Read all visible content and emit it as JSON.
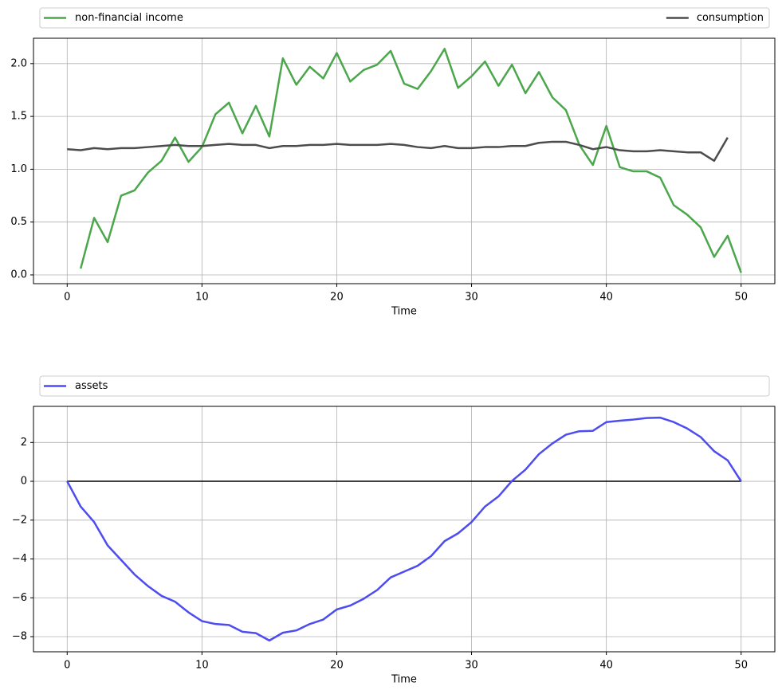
{
  "chart_data": [
    {
      "type": "line",
      "xlabel": "Time",
      "grid": true,
      "legend": "above",
      "xlim": [
        -2.5,
        52.5
      ],
      "ylim": [
        -0.083,
        2.24
      ],
      "xticks": [
        0,
        10,
        20,
        30,
        40,
        50
      ],
      "yticks": [
        {
          "value": 0,
          "label": "0.0"
        },
        0.5,
        {
          "value": 1,
          "label": "1.0"
        },
        1.5,
        {
          "value": 2,
          "label": "2.0"
        }
      ],
      "x": [
        0,
        1,
        2,
        3,
        4,
        5,
        6,
        7,
        8,
        9,
        10,
        11,
        12,
        13,
        14,
        15,
        16,
        17,
        18,
        19,
        20,
        21,
        22,
        23,
        24,
        25,
        26,
        27,
        28,
        29,
        30,
        31,
        32,
        33,
        34,
        35,
        36,
        37,
        38,
        39,
        40,
        41,
        42,
        43,
        44,
        45,
        46,
        47,
        48,
        49,
        50
      ],
      "series": [
        {
          "name": "non-financial income",
          "color": "#4ca64c",
          "values": [
            null,
            0.06,
            0.54,
            0.31,
            0.75,
            0.8,
            0.97,
            1.08,
            1.3,
            1.07,
            1.21,
            1.52,
            1.63,
            1.34,
            1.6,
            1.31,
            2.05,
            1.8,
            1.97,
            1.86,
            2.1,
            1.83,
            1.94,
            1.99,
            2.12,
            1.81,
            1.76,
            1.93,
            2.14,
            1.77,
            1.88,
            2.02,
            1.79,
            1.99,
            1.72,
            1.92,
            1.68,
            1.56,
            1.23,
            1.04,
            1.41,
            1.02,
            0.98,
            0.98,
            0.92,
            0.66,
            0.57,
            0.45,
            0.17,
            0.37,
            0.02
          ]
        },
        {
          "name": "consumption",
          "color": "#4c4c4c",
          "values": [
            1.19,
            1.18,
            1.2,
            1.19,
            1.2,
            1.2,
            1.21,
            1.22,
            1.23,
            1.22,
            1.22,
            1.23,
            1.24,
            1.23,
            1.23,
            1.2,
            1.22,
            1.22,
            1.23,
            1.23,
            1.24,
            1.23,
            1.23,
            1.23,
            1.24,
            1.23,
            1.21,
            1.2,
            1.22,
            1.2,
            1.2,
            1.21,
            1.21,
            1.22,
            1.22,
            1.25,
            1.26,
            1.26,
            1.23,
            1.19,
            1.21,
            1.18,
            1.17,
            1.17,
            1.18,
            1.17,
            1.16,
            1.16,
            1.08,
            1.3,
            null
          ]
        }
      ]
    },
    {
      "type": "line",
      "xlabel": "Time",
      "grid": true,
      "legend": "above",
      "xlim": [
        -2.5,
        52.5
      ],
      "ylim": [
        -8.78,
        3.86
      ],
      "xticks": [
        0,
        10,
        20,
        30,
        40,
        50
      ],
      "yticks": [
        {
          "value": -8,
          "label": "−8"
        },
        {
          "value": -6,
          "label": "−6"
        },
        {
          "value": -4,
          "label": "−4"
        },
        {
          "value": -2,
          "label": "−2"
        },
        0,
        2
      ],
      "x": [
        0,
        1,
        2,
        3,
        4,
        5,
        6,
        7,
        8,
        9,
        10,
        11,
        12,
        13,
        14,
        15,
        16,
        17,
        18,
        19,
        20,
        21,
        22,
        23,
        24,
        25,
        26,
        27,
        28,
        29,
        30,
        31,
        32,
        33,
        34,
        35,
        36,
        37,
        38,
        39,
        40,
        41,
        42,
        43,
        44,
        45,
        46,
        47,
        48,
        49,
        50
      ],
      "series": [
        {
          "name": "assets",
          "color": "#4c4cf0",
          "values": [
            0,
            -1.3,
            -2.1,
            -3.3,
            -4.05,
            -4.8,
            -5.4,
            -5.9,
            -6.2,
            -6.75,
            -7.2,
            -7.35,
            -7.4,
            -7.75,
            -7.82,
            -8.2,
            -7.8,
            -7.68,
            -7.35,
            -7.12,
            -6.6,
            -6.4,
            -6.05,
            -5.6,
            -4.95,
            -4.65,
            -4.35,
            -3.85,
            -3.08,
            -2.68,
            -2.1,
            -1.3,
            -0.78,
            0.02,
            0.6,
            1.4,
            1.95,
            2.4,
            2.58,
            2.6,
            3.05,
            3.12,
            3.18,
            3.26,
            3.28,
            3.05,
            2.72,
            2.28,
            1.55,
            1.08,
            0.0
          ]
        }
      ],
      "hlines": [
        {
          "y": 0,
          "xmin": 0,
          "xmax": 50,
          "color": "#000000"
        }
      ]
    }
  ]
}
